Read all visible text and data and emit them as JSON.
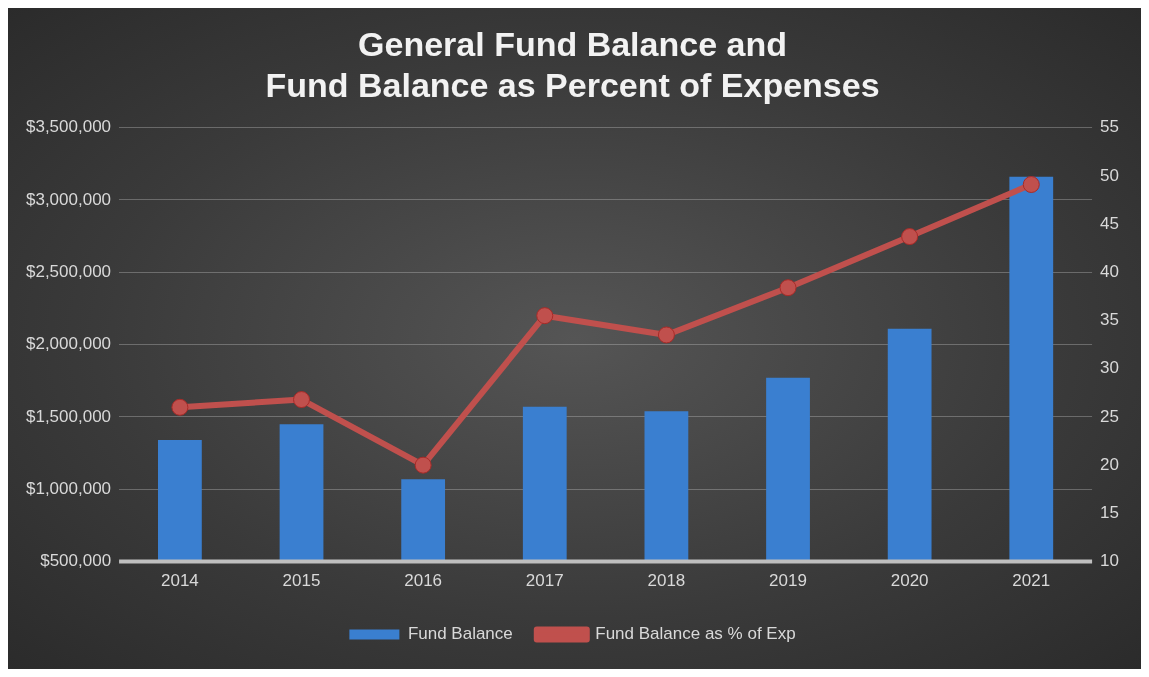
{
  "chart_data": {
    "type": "bar",
    "title": "General Fund Balance and\nFund Balance as Percent of Expenses",
    "categories": [
      "2014",
      "2015",
      "2016",
      "2017",
      "2018",
      "2019",
      "2020",
      "2021"
    ],
    "series": [
      {
        "name": "Fund Balance",
        "color": "#3a7fd0",
        "values": [
          1340000,
          1450000,
          1070000,
          1570000,
          1540000,
          1770000,
          2110000,
          3160000
        ]
      },
      {
        "name": "Fund Balance as % of Exp",
        "type": "line",
        "axis": "y2",
        "color": "#c0504d",
        "marker": "circle",
        "values": [
          26.0,
          26.8,
          20.0,
          35.5,
          33.5,
          38.4,
          43.7,
          49.1
        ]
      }
    ],
    "ylim": [
      500000,
      3500000
    ],
    "yticks": [
      {
        "value": 500000,
        "label": "$500,000"
      },
      {
        "value": 1000000,
        "label": "$1,000,000"
      },
      {
        "value": 1500000,
        "label": "$1,500,000"
      },
      {
        "value": 2000000,
        "label": "$2,000,000"
      },
      {
        "value": 2500000,
        "label": "$2,500,000"
      },
      {
        "value": 3000000,
        "label": "$3,000,000"
      },
      {
        "value": 3500000,
        "label": "$3,500,000"
      }
    ],
    "y2lim": [
      10,
      55
    ],
    "y2ticks": [
      10,
      15,
      20,
      25,
      30,
      35,
      40,
      45,
      50,
      55
    ],
    "grid": "y",
    "legend": "bottom"
  }
}
